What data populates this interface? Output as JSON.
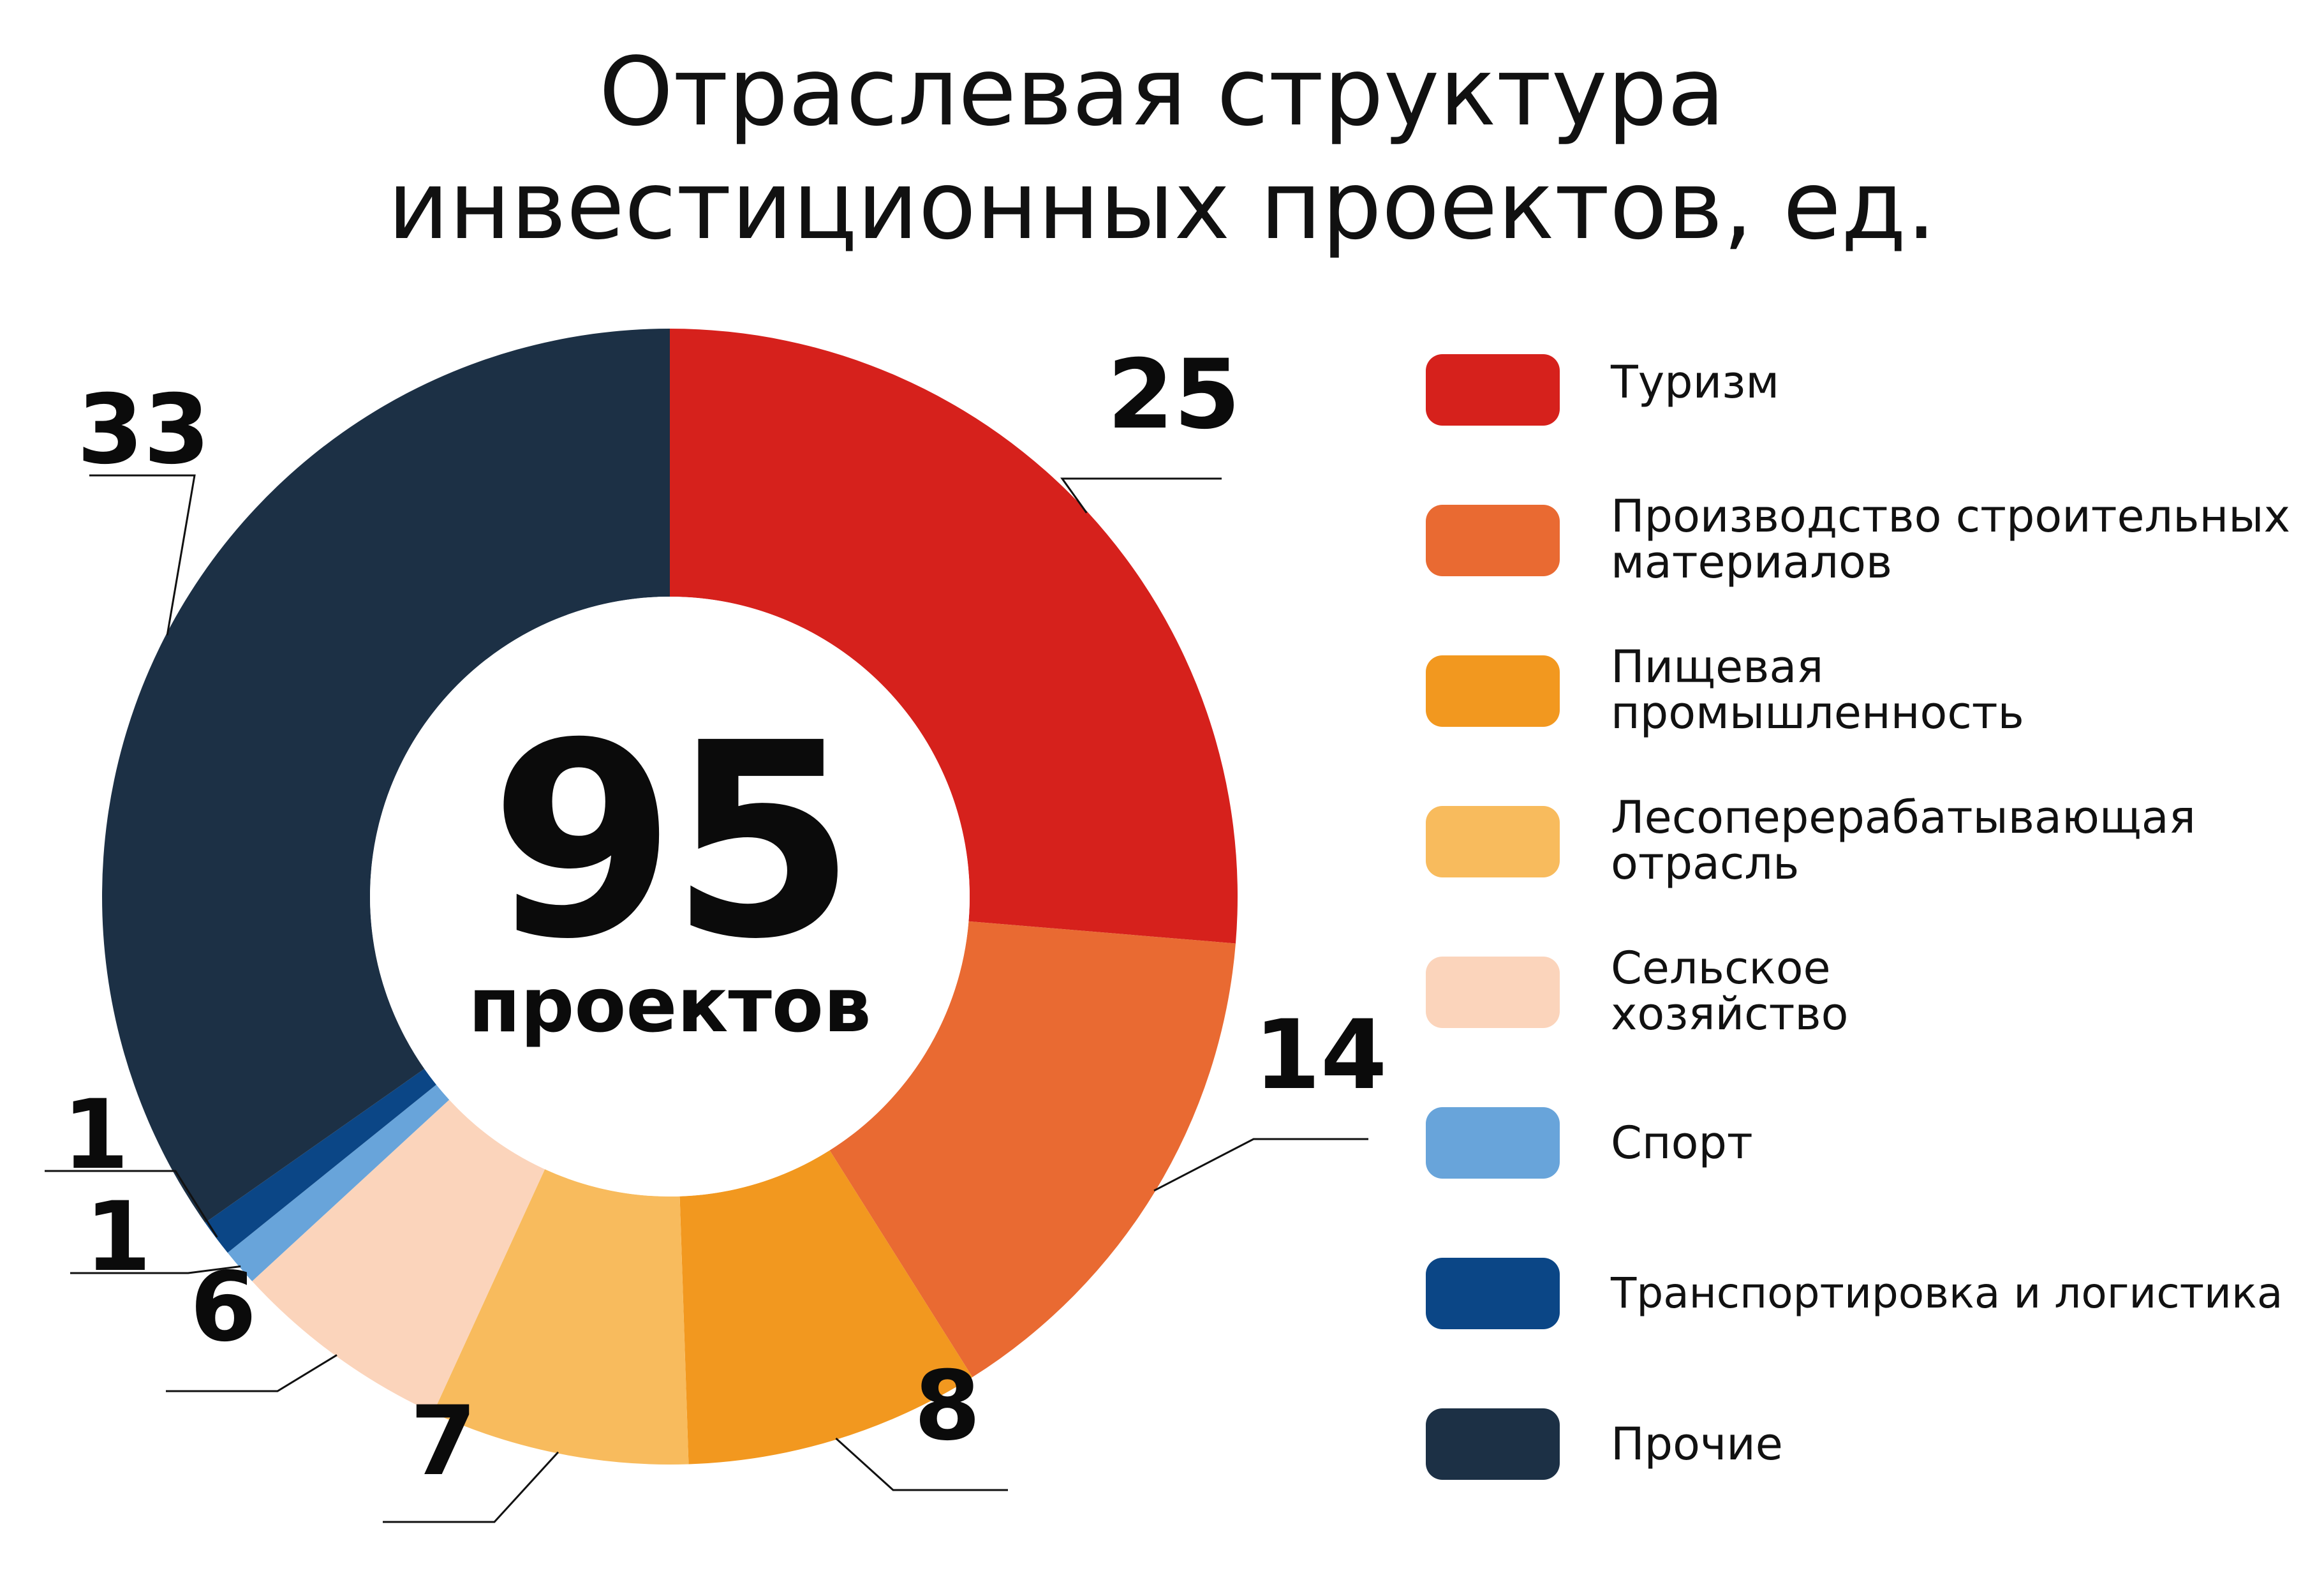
{
  "title": {
    "line1": "Отраслевая структура",
    "line2": "инвестиционных проектов, ед."
  },
  "center": {
    "total": "95",
    "caption": "проектов"
  },
  "chart_data": {
    "type": "pie",
    "variant": "donut",
    "title": "Отраслевая структура инвестиционных проектов, ед.",
    "total": 95,
    "center_label": "95 проектов",
    "legend_position": "right",
    "slices": [
      {
        "name": "Туризм",
        "value": 25,
        "color": "#D6211C"
      },
      {
        "name": "Производство строительных материалов",
        "value": 14,
        "color": "#E96A32"
      },
      {
        "name": "Пищевая промышленность",
        "value": 8,
        "color": "#F2981F"
      },
      {
        "name": "Лесоперерабатывающая отрасль",
        "value": 7,
        "color": "#F8BB5D"
      },
      {
        "name": "Сельское хозяйство",
        "value": 6,
        "color": "#FBD4BB"
      },
      {
        "name": "Спорт",
        "value": 1,
        "color": "#68A4DA"
      },
      {
        "name": "Транспортировка и логистика",
        "value": 1,
        "color": "#0B4686"
      },
      {
        "name": "Прочие",
        "value": 33,
        "color": "#1C3045"
      }
    ]
  },
  "legend": [
    {
      "label": "Туризм",
      "color": "#D6211C"
    },
    {
      "label": "Производство строительных материалов",
      "color": "#E96A32"
    },
    {
      "label": "Пищевая промышленность",
      "color": "#F2981F"
    },
    {
      "label": "Лесоперерабатывающая отрасль",
      "color": "#F8BB5D"
    },
    {
      "label": "Сельское хозяйство",
      "color": "#FBD4BB"
    },
    {
      "label": "Спорт",
      "color": "#68A4DA"
    },
    {
      "label": "Транспортировка и логистика",
      "color": "#0B4686"
    },
    {
      "label": "Прочие",
      "color": "#1C3045"
    }
  ]
}
